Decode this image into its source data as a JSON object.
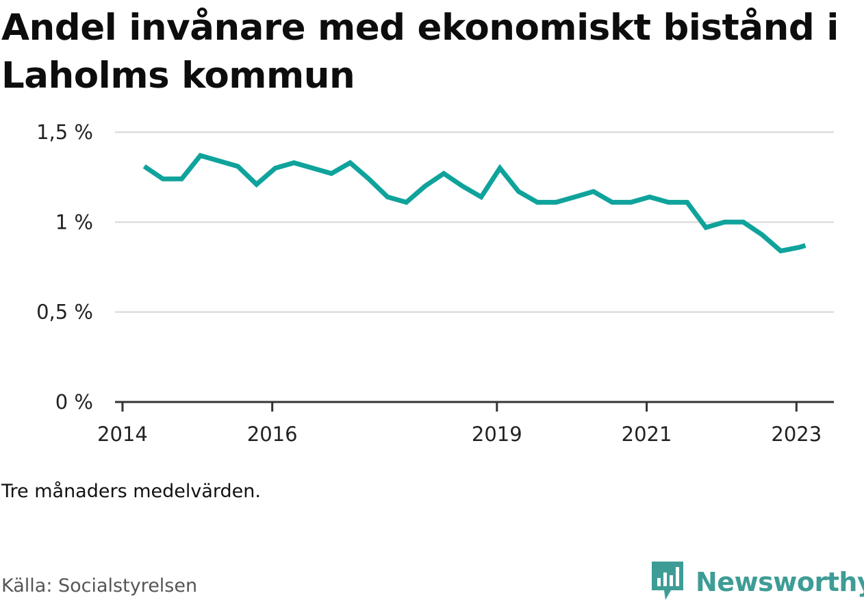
{
  "title": "Andel invånare med ekonomiskt bistånd i Laholms kommun",
  "note": "Tre månaders medelvärden.",
  "source": "Källa: Socialstyrelsen",
  "brand": {
    "name": "Newsworthy",
    "icon": "newsworthy-logo-icon",
    "color": "#3e9c96"
  },
  "colors": {
    "line": "#0fa39c",
    "grid": "#dddddd",
    "axis": "#333333"
  },
  "chart_data": {
    "type": "line",
    "title": "Andel invånare med ekonomiskt bistånd i Laholms kommun",
    "xlabel": "",
    "ylabel": "",
    "yticks": [
      "0 %",
      "0,5 %",
      "1 %",
      "1,5 %"
    ],
    "ytick_values": [
      0,
      0.5,
      1,
      1.5
    ],
    "ylim": [
      0,
      1.5
    ],
    "xticks": [
      "2014",
      "2016",
      "2019",
      "2021",
      "2023"
    ],
    "xtick_values": [
      2014.0,
      2016.0,
      2019.0,
      2021.0,
      2023.0
    ],
    "xlim": [
      2013.9,
      2023.5
    ],
    "grid": true,
    "series": [
      {
        "color": "#0fa39c",
        "x": [
          2014.29,
          2014.54,
          2014.79,
          2015.04,
          2015.29,
          2015.54,
          2015.79,
          2016.04,
          2016.29,
          2016.54,
          2016.79,
          2017.04,
          2017.29,
          2017.54,
          2017.79,
          2018.04,
          2018.29,
          2018.54,
          2018.79,
          2019.04,
          2019.29,
          2019.54,
          2019.79,
          2020.04,
          2020.29,
          2020.54,
          2020.79,
          2021.04,
          2021.29,
          2021.54,
          2021.79,
          2022.04,
          2022.29,
          2022.54,
          2022.79,
          2023.04,
          2023.12
        ],
        "values": [
          1.31,
          1.24,
          1.24,
          1.37,
          1.34,
          1.31,
          1.21,
          1.3,
          1.33,
          1.3,
          1.27,
          1.33,
          1.24,
          1.14,
          1.11,
          1.2,
          1.27,
          1.2,
          1.14,
          1.3,
          1.17,
          1.11,
          1.11,
          1.14,
          1.17,
          1.11,
          1.11,
          1.14,
          1.11,
          1.11,
          0.97,
          1.0,
          1.0,
          0.93,
          0.84,
          0.86,
          0.87
        ]
      }
    ]
  }
}
